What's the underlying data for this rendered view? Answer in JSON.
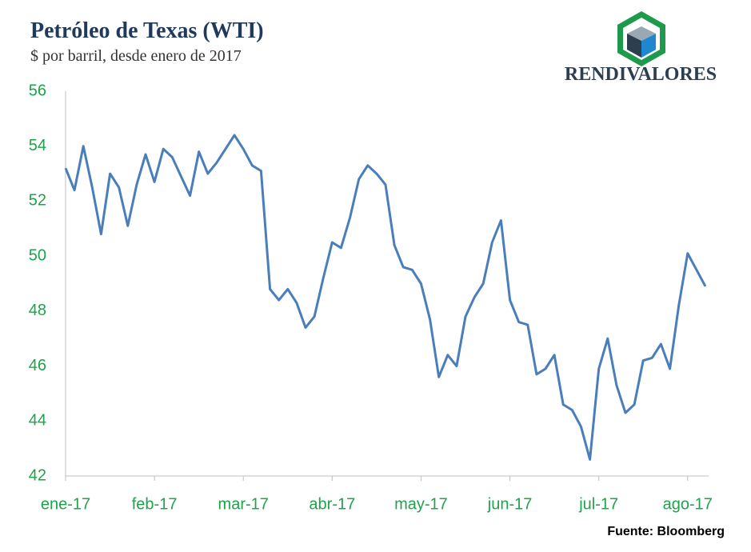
{
  "chart_data": {
    "type": "line",
    "title": "Petróleo de Texas (WTI)",
    "subtitle": "$ por barril, desde enero de 2017",
    "logo": "RENDIVALORES",
    "source": "Fuente: Bloomberg",
    "categories": [
      "ene-17",
      null,
      null,
      null,
      null,
      null,
      null,
      null,
      null,
      null,
      "feb-17",
      null,
      null,
      null,
      null,
      null,
      null,
      null,
      null,
      null,
      "mar-17",
      null,
      null,
      null,
      null,
      null,
      null,
      null,
      null,
      null,
      "abr-17",
      null,
      null,
      null,
      null,
      null,
      null,
      null,
      null,
      null,
      "may-17",
      null,
      null,
      null,
      null,
      null,
      null,
      null,
      null,
      null,
      "jun-17",
      null,
      null,
      null,
      null,
      null,
      null,
      null,
      null,
      null,
      "jul-17",
      null,
      null,
      null,
      null,
      null,
      null,
      null,
      null,
      null,
      "ago-17",
      null,
      null
    ],
    "series": [
      {
        "name": "WTI",
        "color": "#4a7ebb",
        "values": [
          53.2,
          52.4,
          54.0,
          52.5,
          50.8,
          53.0,
          52.5,
          51.1,
          52.6,
          53.7,
          52.7,
          53.9,
          53.6,
          52.9,
          52.2,
          53.8,
          53.0,
          53.4,
          53.9,
          54.4,
          53.9,
          53.3,
          53.1,
          48.8,
          48.4,
          48.8,
          48.3,
          47.4,
          47.8,
          49.2,
          50.5,
          50.3,
          51.4,
          52.8,
          53.3,
          53.0,
          52.6,
          50.4,
          49.6,
          49.5,
          49.0,
          47.7,
          45.6,
          46.4,
          46.0,
          47.8,
          48.5,
          49.0,
          50.5,
          51.3,
          48.4,
          47.6,
          47.5,
          45.7,
          45.9,
          46.4,
          44.6,
          44.4,
          43.8,
          42.6,
          45.9,
          47.0,
          45.3,
          44.3,
          44.6,
          46.2,
          46.3,
          46.8,
          45.9,
          48.2,
          50.1,
          49.5,
          48.9
        ]
      }
    ],
    "ylim": [
      42,
      56
    ],
    "yticks": [
      42,
      44,
      46,
      48,
      50,
      52,
      54,
      56
    ],
    "grid": false
  }
}
